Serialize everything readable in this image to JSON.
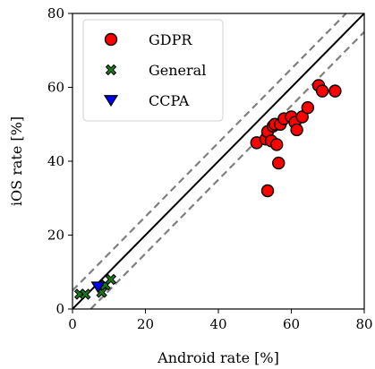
{
  "chart_data": {
    "type": "scatter",
    "xlabel": "Android rate [%]",
    "ylabel": "iOS rate [%]",
    "xlim": [
      0,
      80
    ],
    "ylim": [
      0,
      80
    ],
    "xticks": [
      "0",
      "20",
      "40",
      "60",
      "80"
    ],
    "yticks": [
      "0",
      "20",
      "40",
      "60",
      "80"
    ],
    "grid": false,
    "legend_position": "top-left",
    "reference_lines": [
      {
        "style": "solid",
        "color": "#000000",
        "points": [
          [
            0,
            0
          ],
          [
            80,
            80
          ]
        ]
      },
      {
        "style": "dashed",
        "color": "#7f7f7f",
        "points": [
          [
            0,
            5
          ],
          [
            75,
            80
          ]
        ]
      },
      {
        "style": "dashed",
        "color": "#7f7f7f",
        "points": [
          [
            5,
            0
          ],
          [
            80,
            75
          ]
        ]
      }
    ],
    "series": [
      {
        "name": "GDPR",
        "marker": "circle",
        "color": "#ff0000",
        "points": [
          [
            50.5,
            45
          ],
          [
            53,
            46
          ],
          [
            53.5,
            48
          ],
          [
            54.5,
            45.5
          ],
          [
            55,
            49.5
          ],
          [
            55.5,
            50
          ],
          [
            56,
            44.5
          ],
          [
            56.5,
            39.5
          ],
          [
            53.5,
            32
          ],
          [
            57,
            50
          ],
          [
            58,
            51.5
          ],
          [
            60,
            52
          ],
          [
            61,
            50.5
          ],
          [
            61.5,
            48.5
          ],
          [
            63,
            52
          ],
          [
            64.5,
            54.5
          ],
          [
            67.5,
            60.5
          ],
          [
            68.5,
            59
          ],
          [
            72,
            59
          ]
        ]
      },
      {
        "name": "General",
        "marker": "x",
        "color": "#1a7a1a",
        "points": [
          [
            2,
            4
          ],
          [
            3.5,
            4
          ],
          [
            8,
            4.5
          ],
          [
            9,
            6.5
          ],
          [
            10.5,
            8
          ]
        ]
      },
      {
        "name": "CCPA",
        "marker": "triangle-down",
        "color": "#0000ff",
        "points": [
          [
            7,
            6
          ]
        ]
      }
    ]
  }
}
